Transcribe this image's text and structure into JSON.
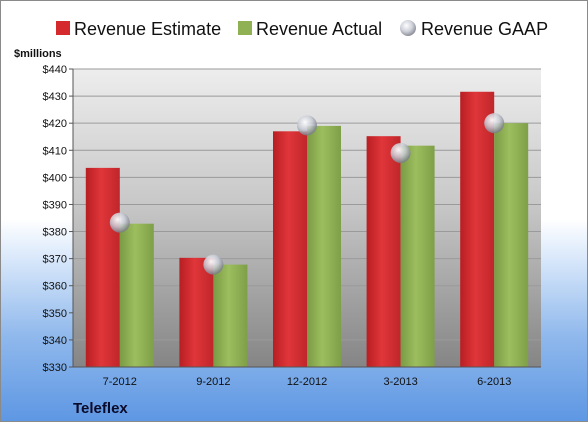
{
  "company": "Teleflex",
  "unit_label": "$millions",
  "colors": {
    "estimate": "#d42a2e",
    "actual": "#8fb153",
    "gaap": "#c9ccd6"
  },
  "chart_data": {
    "type": "bar",
    "categories": [
      "7-2012",
      "9-2012",
      "12-2012",
      "3-2013",
      "6-2013"
    ],
    "series": [
      {
        "name": "Revenue Estimate",
        "type": "bar",
        "values": [
          403.5,
          370.3,
          417.0,
          415.2,
          431.6
        ]
      },
      {
        "name": "Revenue Actual",
        "type": "bar",
        "values": [
          382.9,
          367.8,
          419.0,
          411.7,
          420.0
        ]
      },
      {
        "name": "Revenue GAAP",
        "type": "marker",
        "values": [
          383.3,
          367.8,
          419.2,
          409.0,
          420.0
        ]
      }
    ],
    "ylabel": "$millions",
    "ylim": [
      330,
      440
    ],
    "yticks": [
      "$330",
      "$340",
      "$350",
      "$360",
      "$370",
      "$380",
      "$390",
      "$400",
      "$410",
      "$420",
      "$430",
      "$440"
    ],
    "ytick_values": [
      330,
      340,
      350,
      360,
      370,
      380,
      390,
      400,
      410,
      420,
      430,
      440
    ],
    "grid": true,
    "legend_position": "top"
  }
}
